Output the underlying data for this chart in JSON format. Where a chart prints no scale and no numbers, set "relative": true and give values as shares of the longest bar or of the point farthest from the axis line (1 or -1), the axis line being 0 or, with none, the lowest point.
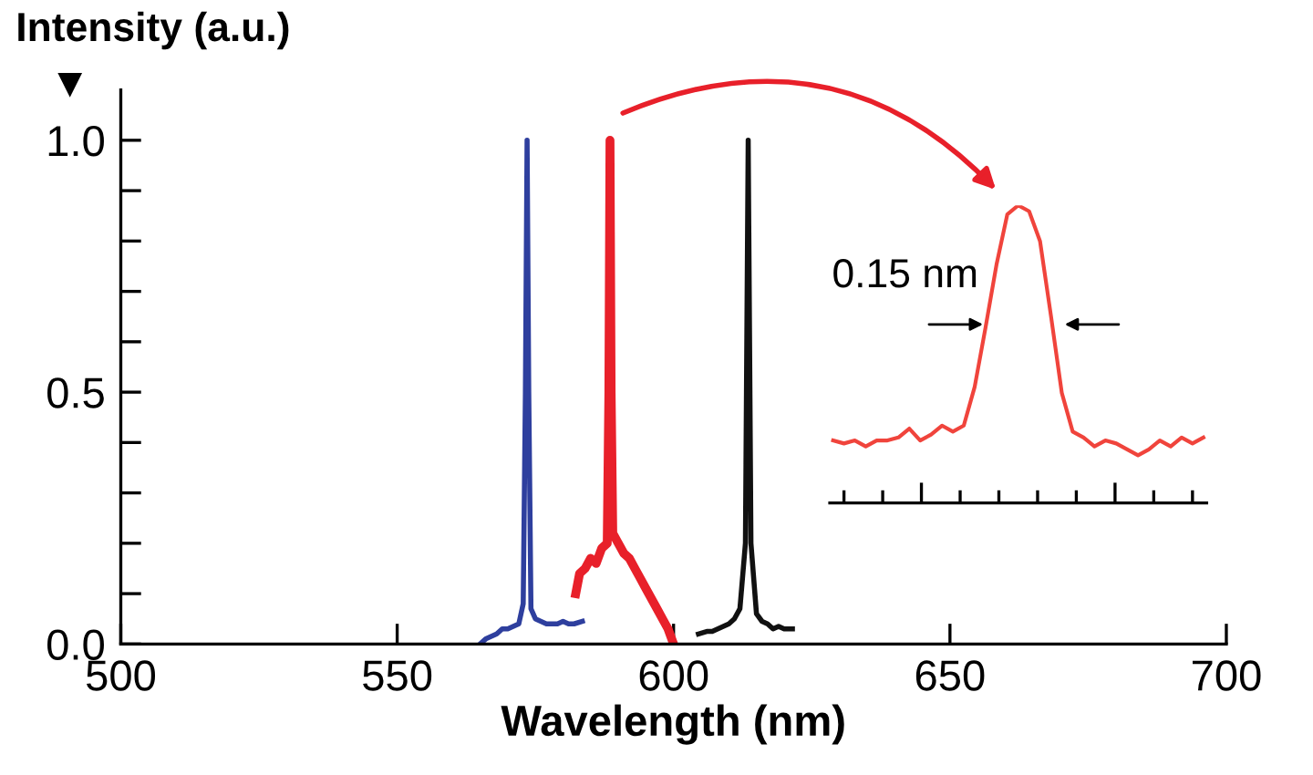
{
  "chart_data": [
    {
      "type": "line",
      "ylabel": "Intensity (a.u.)",
      "xlabel": "Wavelength (nm)",
      "xlim": [
        500,
        700
      ],
      "xticks": [
        500,
        550,
        600,
        650,
        700
      ],
      "ylim": [
        0,
        1.1
      ],
      "yticks": [
        {
          "value": 0,
          "label": "0.0"
        },
        {
          "value": 0.1,
          "label": null
        },
        {
          "value": 0.2,
          "label": null
        },
        {
          "value": 0.3,
          "label": null
        },
        {
          "value": 0.4,
          "label": null
        },
        {
          "value": 0.5,
          "label": "0.5"
        },
        {
          "value": 0.6,
          "label": null
        },
        {
          "value": 0.7,
          "label": null
        },
        {
          "value": 0.8,
          "label": null
        },
        {
          "value": 0.9,
          "label": null
        },
        {
          "value": 1.0,
          "label": "1.0"
        }
      ],
      "grid": false,
      "legend": false,
      "series": [
        {
          "color": "#2e3f9e",
          "x": [
            565,
            566,
            567,
            568,
            569,
            570,
            571,
            572,
            572.8,
            573.2,
            573.5,
            573.8,
            574.2,
            575,
            576,
            577,
            578,
            579,
            580,
            581,
            582,
            583.5
          ],
          "values": [
            0.0,
            0.01,
            0.015,
            0.02,
            0.03,
            0.03,
            0.035,
            0.04,
            0.08,
            0.5,
            1.0,
            0.5,
            0.07,
            0.05,
            0.045,
            0.04,
            0.04,
            0.04,
            0.045,
            0.04,
            0.04,
            0.045
          ]
        },
        {
          "color": "#e8202a",
          "x": [
            582.3,
            583,
            584,
            585,
            586,
            587,
            588,
            588.3,
            588.5,
            588.7,
            589,
            590,
            591,
            592,
            593,
            594,
            595,
            596,
            597,
            598,
            599,
            600
          ],
          "values": [
            0.1,
            0.14,
            0.15,
            0.17,
            0.16,
            0.19,
            0.2,
            0.5,
            1.0,
            0.5,
            0.22,
            0.2,
            0.18,
            0.17,
            0.15,
            0.13,
            0.11,
            0.09,
            0.07,
            0.05,
            0.03,
            0.0
          ]
        },
        {
          "color": "#111111",
          "x": [
            604.5,
            606,
            607,
            608,
            609,
            610,
            611,
            612,
            613,
            613.5,
            614,
            615,
            616,
            617,
            618,
            619,
            620,
            621.5
          ],
          "values": [
            0.02,
            0.025,
            0.025,
            0.03,
            0.035,
            0.04,
            0.05,
            0.07,
            0.2,
            1.0,
            0.2,
            0.06,
            0.045,
            0.04,
            0.03,
            0.035,
            0.03,
            0.03
          ]
        }
      ]
    },
    {
      "type": "line",
      "relative": true,
      "grid": false,
      "legend": false,
      "categories": [
        null,
        null,
        null,
        null,
        null,
        null,
        null,
        null,
        null,
        null,
        null,
        null,
        null,
        null,
        null,
        null,
        null,
        null,
        null,
        null,
        null,
        null,
        null,
        null,
        null,
        null,
        null,
        null,
        null,
        null,
        null,
        null,
        null,
        null,
        null
      ],
      "annotations": [
        "0.15 nm"
      ],
      "series": [
        {
          "color": "#f0443c",
          "values": [
            0.21,
            0.2,
            0.21,
            0.19,
            0.21,
            0.21,
            0.22,
            0.25,
            0.21,
            0.23,
            0.26,
            0.24,
            0.26,
            0.39,
            0.59,
            0.8,
            0.97,
            1.0,
            0.98,
            0.88,
            0.63,
            0.37,
            0.24,
            0.22,
            0.19,
            0.21,
            0.2,
            0.18,
            0.16,
            0.18,
            0.21,
            0.19,
            0.22,
            0.2,
            0.22
          ]
        }
      ]
    }
  ]
}
